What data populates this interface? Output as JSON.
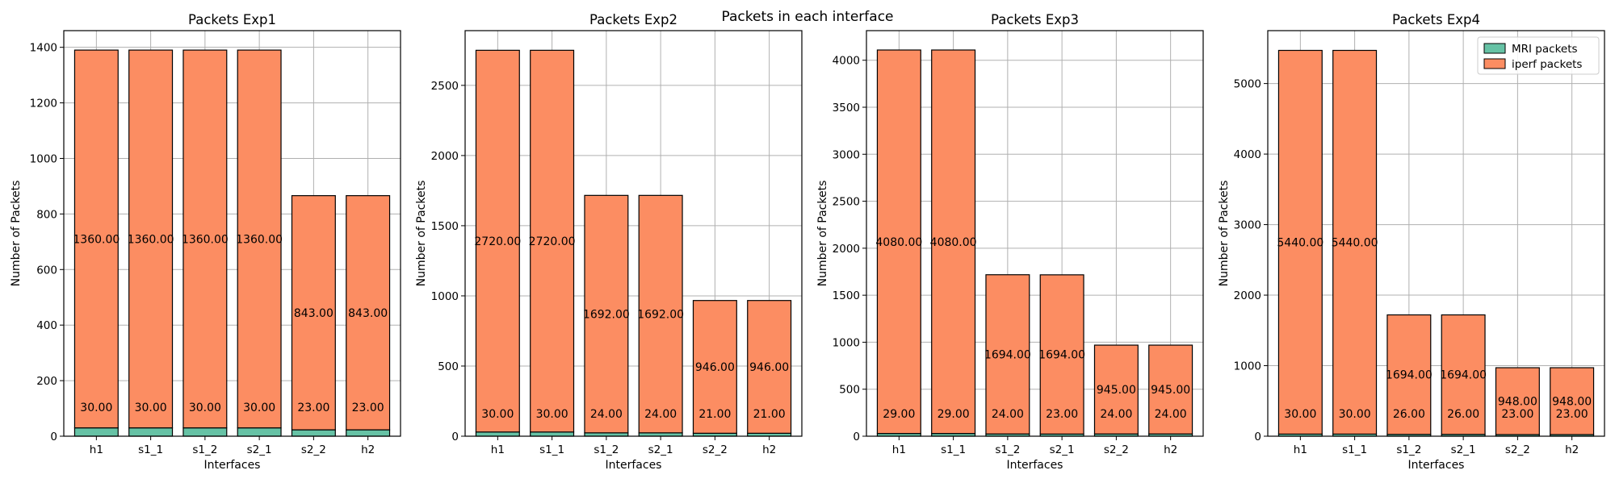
{
  "suptitle": "Packets in each interface",
  "colors": {
    "mri": "#66c2a5",
    "iperf": "#fc8d62",
    "edge": "#000000",
    "grid": "#b0b0b0"
  },
  "legend": {
    "placement": "top-right",
    "entries": [
      "MRI packets",
      "iperf packets"
    ]
  },
  "chart_data": [
    {
      "type": "bar",
      "stacked": true,
      "title": "Packets Exp1",
      "xlabel": "Interfaces",
      "ylabel": "Number of Packets",
      "categories": [
        "h1",
        "s1_1",
        "s1_2",
        "s2_1",
        "s2_2",
        "h2"
      ],
      "ylim": [
        0,
        1460
      ],
      "yticks": [
        0,
        200,
        400,
        600,
        800,
        1000,
        1200,
        1400
      ],
      "grid": true,
      "series": [
        {
          "name": "MRI packets",
          "values": [
            30,
            30,
            30,
            30,
            23,
            23
          ]
        },
        {
          "name": "iperf packets",
          "values": [
            1360,
            1360,
            1360,
            1360,
            843,
            843
          ]
        }
      ]
    },
    {
      "type": "bar",
      "stacked": true,
      "title": "Packets Exp2",
      "xlabel": "Interfaces",
      "ylabel": "Number of Packets",
      "categories": [
        "h1",
        "s1_1",
        "s1_2",
        "s2_1",
        "s2_2",
        "h2"
      ],
      "ylim": [
        0,
        2890
      ],
      "yticks": [
        0,
        500,
        1000,
        1500,
        2000,
        2500
      ],
      "grid": true,
      "series": [
        {
          "name": "MRI packets",
          "values": [
            30,
            30,
            24,
            24,
            21,
            21
          ]
        },
        {
          "name": "iperf packets",
          "values": [
            2720,
            2720,
            1692,
            1692,
            946,
            946
          ]
        }
      ]
    },
    {
      "type": "bar",
      "stacked": true,
      "title": "Packets Exp3",
      "xlabel": "Interfaces",
      "ylabel": "Number of Packets",
      "categories": [
        "h1",
        "s1_1",
        "s1_2",
        "s2_1",
        "s2_2",
        "h2"
      ],
      "ylim": [
        0,
        4315
      ],
      "yticks": [
        0,
        500,
        1000,
        1500,
        2000,
        2500,
        3000,
        3500,
        4000
      ],
      "grid": true,
      "series": [
        {
          "name": "MRI packets",
          "values": [
            29,
            29,
            24,
            23,
            24,
            24
          ]
        },
        {
          "name": "iperf packets",
          "values": [
            4080,
            4080,
            1694,
            1694,
            945,
            945
          ]
        }
      ]
    },
    {
      "type": "bar",
      "stacked": true,
      "title": "Packets Exp4",
      "xlabel": "Interfaces",
      "ylabel": "Number of Packets",
      "categories": [
        "h1",
        "s1_1",
        "s1_2",
        "s2_1",
        "s2_2",
        "h2"
      ],
      "ylim": [
        0,
        5750
      ],
      "yticks": [
        0,
        1000,
        2000,
        3000,
        4000,
        5000
      ],
      "grid": true,
      "series": [
        {
          "name": "MRI packets",
          "values": [
            30,
            30,
            26,
            26,
            23,
            23
          ]
        },
        {
          "name": "iperf packets",
          "values": [
            5440,
            5440,
            1694,
            1694,
            948,
            948
          ]
        }
      ]
    }
  ]
}
